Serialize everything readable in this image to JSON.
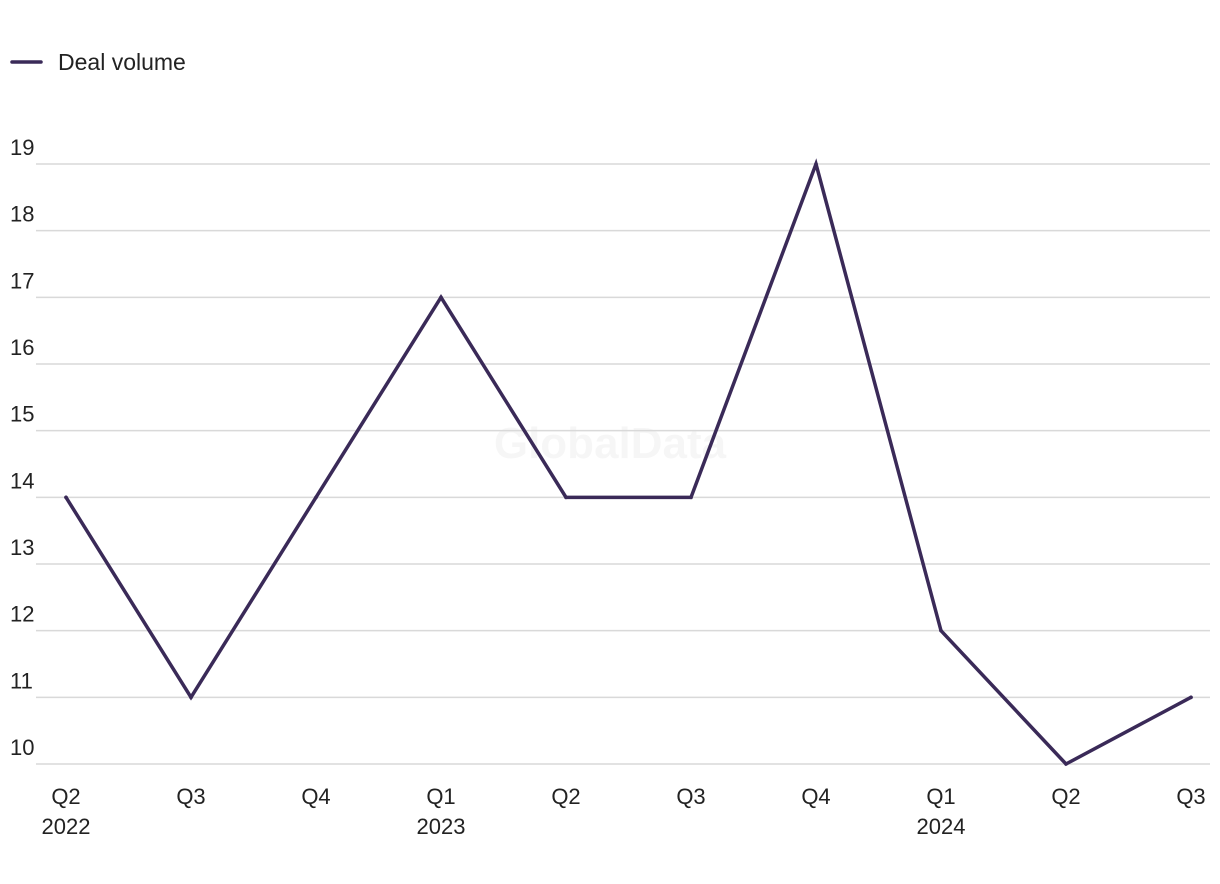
{
  "watermark": "GlobalData",
  "chart_data": {
    "type": "line",
    "categories": [
      "Q2 2022",
      "Q3 2022",
      "Q4 2022",
      "Q1 2023",
      "Q2 2023",
      "Q3 2023",
      "Q4 2023",
      "Q1 2024",
      "Q2 2024",
      "Q3 2024"
    ],
    "x_tick_labels": [
      {
        "quarter": "Q2",
        "year": "2022"
      },
      {
        "quarter": "Q3",
        "year": ""
      },
      {
        "quarter": "Q4",
        "year": ""
      },
      {
        "quarter": "Q1",
        "year": "2023"
      },
      {
        "quarter": "Q2",
        "year": ""
      },
      {
        "quarter": "Q3",
        "year": ""
      },
      {
        "quarter": "Q4",
        "year": ""
      },
      {
        "quarter": "Q1",
        "year": "2024"
      },
      {
        "quarter": "Q2",
        "year": ""
      },
      {
        "quarter": "Q3",
        "year": ""
      }
    ],
    "series": [
      {
        "name": "Deal volume",
        "color": "#3a2a58",
        "values": [
          14,
          11,
          14,
          17,
          14,
          14,
          19,
          12,
          10,
          11
        ]
      }
    ],
    "y_ticks": [
      10,
      11,
      12,
      13,
      14,
      15,
      16,
      17,
      18,
      19
    ],
    "ylim": [
      10,
      19
    ],
    "grid": true,
    "legend": "top-left"
  }
}
